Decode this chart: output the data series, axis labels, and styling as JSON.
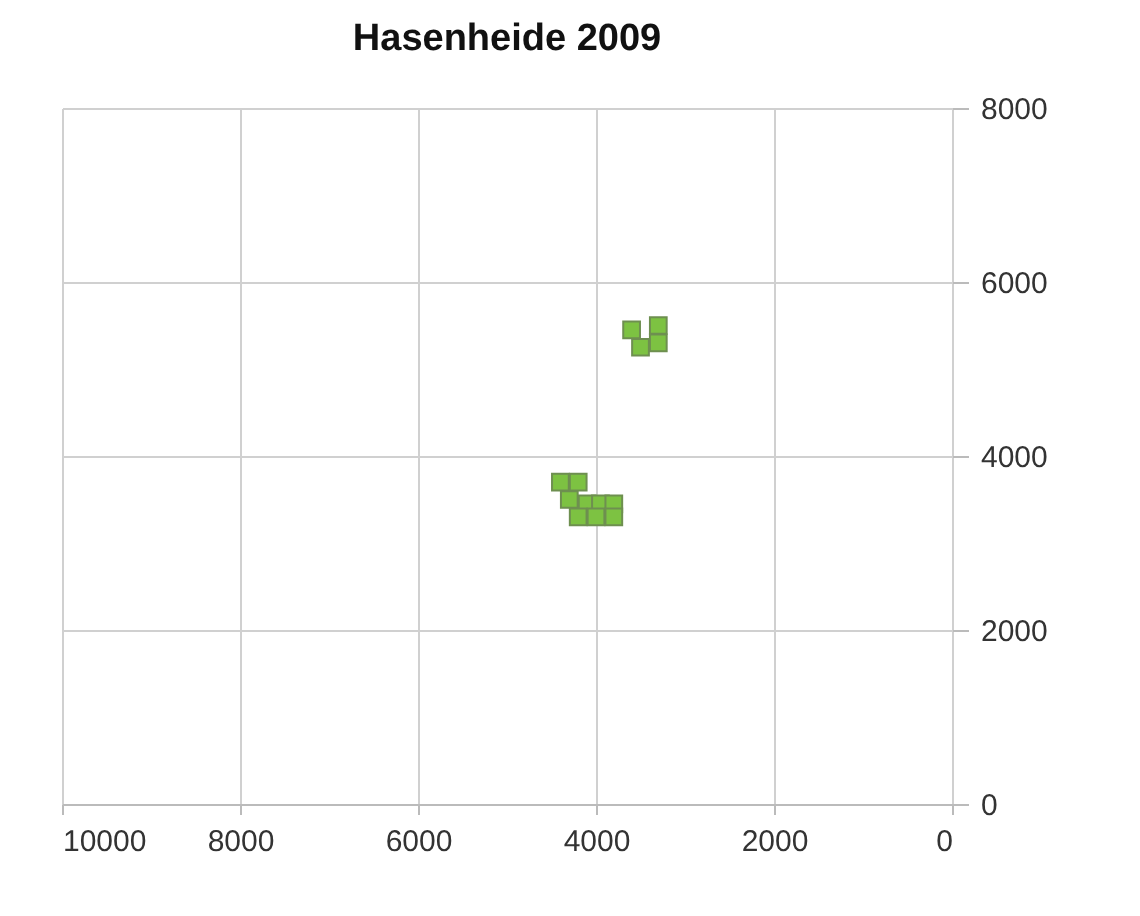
{
  "chart_data": {
    "type": "scatter",
    "title": "Hasenheide 2009",
    "x": [
      3600,
      3500,
      3300,
      3300,
      4400,
      4200,
      4300,
      4100,
      3950,
      3800,
      4200,
      4000,
      3800
    ],
    "series": [
      {
        "color": "#7dc242",
        "values": [
          5450,
          5250,
          5500,
          5300,
          3700,
          3700,
          3500,
          3450,
          3450,
          3450,
          3300,
          3300,
          3300
        ]
      }
    ],
    "xlim": [
      10000,
      0
    ],
    "xticks": [
      10000,
      8000,
      6000,
      4000,
      2000,
      0
    ],
    "ylim": [
      0,
      8000
    ],
    "yticks": [
      0,
      2000,
      4000,
      6000,
      8000
    ],
    "grid": true,
    "marker": "square"
  }
}
